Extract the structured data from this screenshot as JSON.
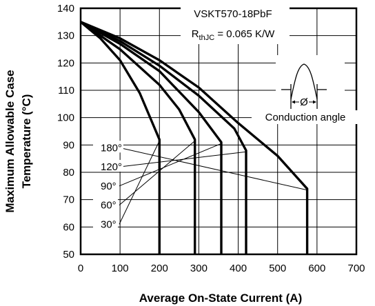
{
  "chart_data": {
    "type": "line",
    "title": "",
    "xlabel": "Average On-State Current (A)",
    "ylabel_lines": [
      "Maximum Allowable Case",
      "Temperature (°C)"
    ],
    "xlim": [
      0,
      700
    ],
    "ylim": [
      50,
      140
    ],
    "xticks": [
      0,
      100,
      200,
      300,
      400,
      500,
      600,
      700
    ],
    "yticks": [
      50,
      60,
      70,
      80,
      90,
      100,
      110,
      120,
      130,
      140
    ],
    "grid": true,
    "device_label": "VSKT570-18PbF",
    "rth": {
      "symbol": "R",
      "subscript": "thJC",
      "value_text": " = 0.065 K/W"
    },
    "inset": {
      "phi_label": "Ø",
      "caption": "Conduction angle"
    },
    "series": [
      {
        "name": "30°",
        "points": [
          [
            0,
            135
          ],
          [
            50,
            129
          ],
          [
            100,
            121
          ],
          [
            150,
            109
          ],
          [
            200,
            92
          ],
          [
            200,
            50
          ]
        ]
      },
      {
        "name": "60°",
        "points": [
          [
            0,
            135
          ],
          [
            100,
            125
          ],
          [
            200,
            112
          ],
          [
            250,
            103
          ],
          [
            290,
            92
          ],
          [
            290,
            50
          ]
        ]
      },
      {
        "name": "90°",
        "points": [
          [
            0,
            135
          ],
          [
            100,
            127
          ],
          [
            200,
            117
          ],
          [
            300,
            102
          ],
          [
            357,
            91
          ],
          [
            357,
            50
          ]
        ]
      },
      {
        "name": "120°",
        "points": [
          [
            0,
            135
          ],
          [
            100,
            128
          ],
          [
            200,
            119
          ],
          [
            300,
            108
          ],
          [
            390,
            96
          ],
          [
            420,
            88
          ],
          [
            420,
            50
          ]
        ]
      },
      {
        "name": "180°",
        "points": [
          [
            0,
            135
          ],
          [
            100,
            129
          ],
          [
            200,
            121
          ],
          [
            300,
            111
          ],
          [
            400,
            98
          ],
          [
            500,
            86
          ],
          [
            575,
            74
          ],
          [
            575,
            50
          ]
        ]
      }
    ]
  }
}
